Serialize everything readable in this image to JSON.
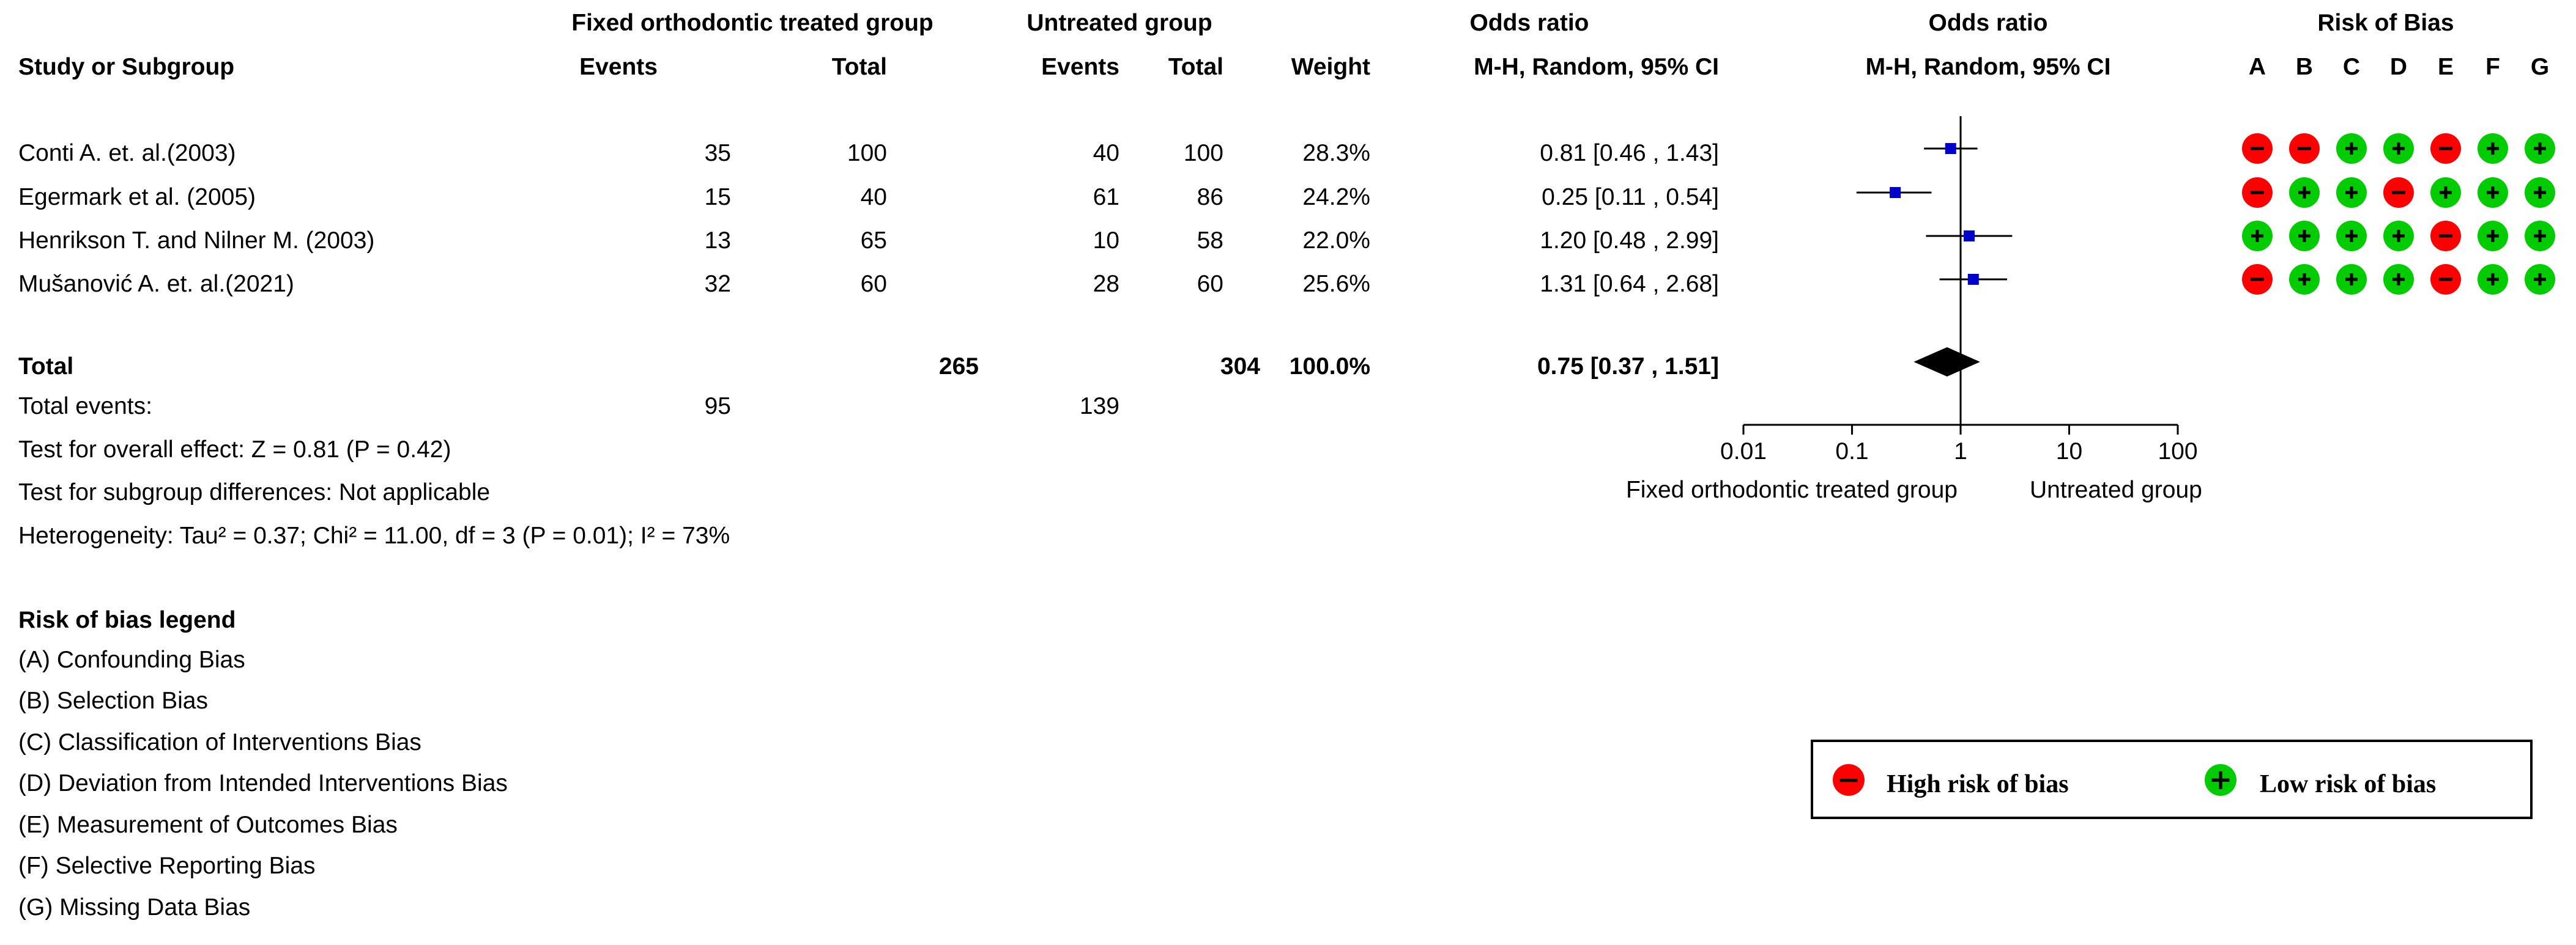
{
  "header": {
    "group1_title": "Fixed orthodontic treated group",
    "group2_title": "Untreated group",
    "or_title": "Odds ratio",
    "plot_title": "Odds ratio",
    "rob_title": "Risk of Bias",
    "study_col": "Study or Subgroup",
    "events_col": "Events",
    "total_col": "Total",
    "events2_col": "Events",
    "total2_col": "Total",
    "weight_col": "Weight",
    "or_method": "M-H, Random, 95% CI",
    "plot_method": "M-H, Random, 95% CI",
    "rob_letters": [
      "A",
      "B",
      "C",
      "D",
      "E",
      "F",
      "G"
    ]
  },
  "studies": [
    {
      "name": "Conti A. et. al.(2003)",
      "events1": "35",
      "total1": "100",
      "events2": "40",
      "total2": "100",
      "weight": "28.3%",
      "ci_text": "0.81 [0.46 , 1.43]"
    },
    {
      "name": "Egermark et al. (2005)",
      "events1": "15",
      "total1": "40",
      "events2": "61",
      "total2": "86",
      "weight": "24.2%",
      "ci_text": "0.25 [0.11 , 0.54]"
    },
    {
      "name": "Henrikson T. and Nilner M. (2003)",
      "events1": "13",
      "total1": "65",
      "events2": "10",
      "total2": "58",
      "weight": "22.0%",
      "ci_text": "1.20 [0.48 , 2.99]"
    },
    {
      "name": "Mušanović A. et. al.(2021)",
      "events1": "32",
      "total1": "60",
      "events2": "28",
      "total2": "60",
      "weight": "25.6%",
      "ci_text": "1.31 [0.64 , 2.68]"
    }
  ],
  "total": {
    "label": "Total",
    "total1": "265",
    "total2": "304",
    "weight": "100.0%",
    "ci_text": "0.75 [0.37 , 1.51]",
    "events_label": "Total events:",
    "events1": "95",
    "events2": "139"
  },
  "stats": {
    "overall_effect": "Test for overall effect: Z = 0.81 (P = 0.42)",
    "subgroup": "Test for subgroup differences: Not applicable",
    "heterogeneity": "Heterogeneity: Tau² = 0.37; Chi² = 11.00, df = 3 (P = 0.01); I² = 73%"
  },
  "bias_legend": {
    "title": "Risk of bias legend",
    "items": [
      "(A) Confounding Bias",
      "(B) Selection Bias",
      "(C) Classification of Interventions Bias",
      "(D) Deviation from Intended Interventions Bias",
      "(E) Measurement of Outcomes Bias",
      "(F) Selective Reporting Bias",
      "(G) Missing Data Bias"
    ]
  },
  "key": {
    "high_label": "High risk of bias",
    "low_label": "Low  risk of bias",
    "high_symbol": "−",
    "low_symbol": "+",
    "high_color": "#ff0000",
    "low_color": "#00cc00"
  },
  "chart_data": {
    "type": "scatter",
    "xscale": "log",
    "xlim": [
      0.01,
      100
    ],
    "ticks": [
      {
        "value": 0.01,
        "label": "0.01"
      },
      {
        "value": 0.1,
        "label": "0.1"
      },
      {
        "value": 1,
        "label": "1"
      },
      {
        "value": 10,
        "label": "10"
      },
      {
        "value": 100,
        "label": "100"
      }
    ],
    "left_label": "Fixed orthodontic treated group",
    "right_label": "Untreated group",
    "marker_color": "#0000cc",
    "points": [
      {
        "or": 0.81,
        "lo": 0.46,
        "hi": 1.43
      },
      {
        "or": 0.25,
        "lo": 0.11,
        "hi": 0.54
      },
      {
        "or": 1.2,
        "lo": 0.48,
        "hi": 2.99
      },
      {
        "or": 1.31,
        "lo": 0.64,
        "hi": 2.68
      }
    ],
    "pooled": {
      "or": 0.75,
      "lo": 0.37,
      "hi": 1.51
    },
    "risk_of_bias": [
      [
        "high",
        "high",
        "low",
        "low",
        "high",
        "low",
        "low"
      ],
      [
        "high",
        "low",
        "low",
        "high",
        "low",
        "low",
        "low"
      ],
      [
        "low",
        "low",
        "low",
        "low",
        "high",
        "low",
        "low"
      ],
      [
        "high",
        "low",
        "low",
        "low",
        "high",
        "low",
        "low"
      ]
    ]
  }
}
